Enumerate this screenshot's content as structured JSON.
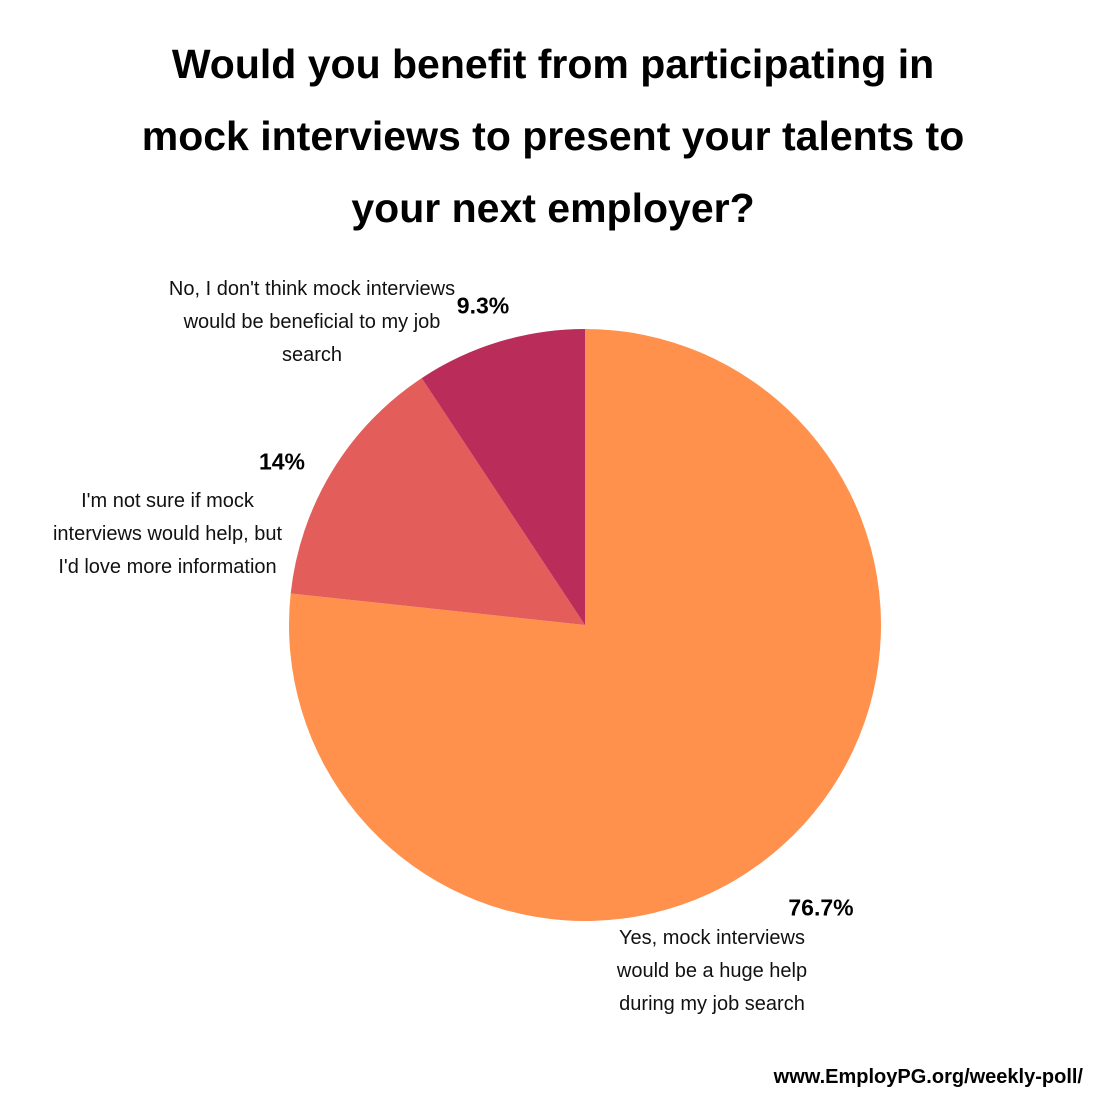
{
  "chart_data": {
    "type": "pie",
    "title": "Would you benefit from participating in mock interviews to present your talents to your next employer?",
    "categories": [
      "Yes, mock interviews would be a huge help during my job search",
      "I'm not sure if mock interviews would help, but I'd love more information",
      "No, I don't think mock interviews would be beneficial to my job search"
    ],
    "values": [
      76.7,
      14,
      9.3
    ],
    "value_labels": [
      "76.7%",
      "14%",
      "9.3%"
    ],
    "colors": [
      "#ff914d",
      "#e35d5b",
      "#ba2d5a"
    ],
    "footer": "www.EmployPG.org/weekly-poll/"
  }
}
